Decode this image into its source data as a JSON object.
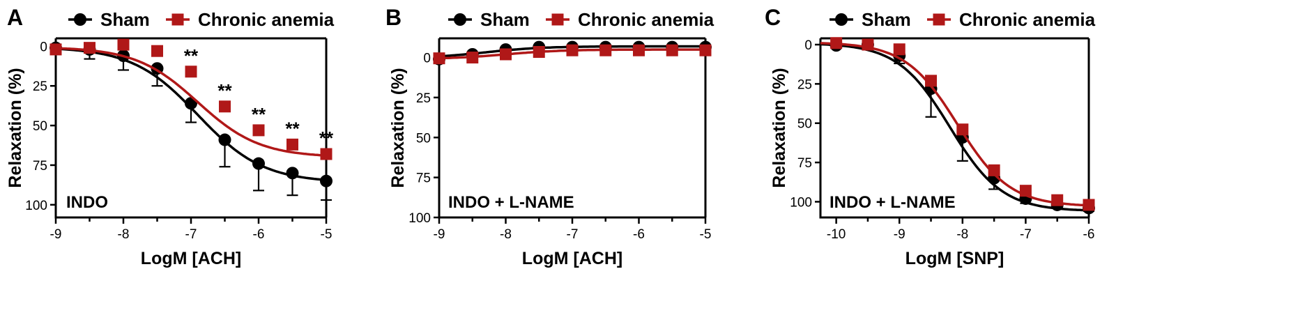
{
  "colors": {
    "sham": "#000000",
    "anemia": "#b01818"
  },
  "chart_data": [
    {
      "type": "line",
      "panel": "A",
      "condition": "INDO",
      "xlabel": "LogM [ACH]",
      "ylabel": "Relaxation (%)",
      "xlim": [
        -9,
        -5
      ],
      "ylim": [
        108,
        -5
      ],
      "y_inverted": true,
      "xticks": [
        -9,
        -8,
        -7,
        -6,
        -5
      ],
      "xtick_labels": [
        "-9",
        "-8",
        "-7",
        "-6",
        "-5"
      ],
      "yticks": [
        0,
        25,
        50,
        75,
        100
      ],
      "ytick_labels": [
        "0",
        "25",
        "50",
        "75",
        "100"
      ],
      "legend_position": "top",
      "series": [
        {
          "name": "Sham",
          "marker": "circle",
          "color": "#000000",
          "x": [
            -9,
            -8.5,
            -8,
            -7.5,
            -7,
            -6.5,
            -6,
            -5.5,
            -5
          ],
          "y": [
            1,
            2,
            6,
            14,
            36,
            59,
            74,
            80,
            85
          ],
          "error": [
            1.5,
            6,
            9,
            11,
            12,
            17,
            17,
            14,
            12
          ],
          "fit": {
            "top": 0.5,
            "bottom": 86,
            "logEC50": -6.9,
            "hill": 0.9
          }
        },
        {
          "name": "Chronic anemia",
          "marker": "square",
          "color": "#b01818",
          "x": [
            -9,
            -8.5,
            -8,
            -7.5,
            -7,
            -6.5,
            -6,
            -5.5,
            -5
          ],
          "y": [
            2,
            1,
            -1,
            3,
            16,
            38,
            53,
            62,
            68
          ],
          "error": [
            1.5,
            2,
            1.5,
            1.5,
            3,
            3,
            3,
            2.5,
            2
          ],
          "fit": {
            "top": 0.5,
            "bottom": 70,
            "logEC50": -6.9,
            "hill": 0.95
          }
        }
      ],
      "annotations": [
        {
          "text": "**",
          "x": -7,
          "y": 16
        },
        {
          "text": "**",
          "x": -6.5,
          "y": 38
        },
        {
          "text": "**",
          "x": -6,
          "y": 53
        },
        {
          "text": "**",
          "x": -5.5,
          "y": 62
        },
        {
          "text": "**",
          "x": -5,
          "y": 68
        }
      ]
    },
    {
      "type": "line",
      "panel": "B",
      "condition": "INDO + L-NAME",
      "xlabel": "LogM [ACH]",
      "ylabel": "Relaxation (%)",
      "xlim": [
        -9,
        -5
      ],
      "ylim": [
        100,
        -12
      ],
      "y_inverted": true,
      "xticks": [
        -9,
        -8,
        -7,
        -6,
        -5
      ],
      "xtick_labels": [
        "-9",
        "-8",
        "-7",
        "-6",
        "-5"
      ],
      "yticks": [
        0,
        25,
        50,
        75,
        100
      ],
      "ytick_labels": [
        "0",
        "25",
        "50",
        "75",
        "100"
      ],
      "legend_position": "top",
      "series": [
        {
          "name": "Sham",
          "marker": "circle",
          "color": "#000000",
          "x": [
            -9,
            -8.5,
            -8,
            -7.5,
            -7,
            -6.5,
            -6,
            -5.5,
            -5
          ],
          "y": [
            1,
            -2,
            -5,
            -6.5,
            -6.5,
            -6.5,
            -6.5,
            -6.5,
            -6.5
          ],
          "error": [
            1.5,
            1.5,
            1.5,
            2,
            4,
            2,
            2,
            3,
            3
          ],
          "fit": {
            "top": 0.5,
            "bottom": -7,
            "logEC50": -8.3,
            "hill": 1
          }
        },
        {
          "name": "Chronic anemia",
          "marker": "square",
          "color": "#b01818",
          "x": [
            -9,
            -8.5,
            -8,
            -7.5,
            -7,
            -6.5,
            -6,
            -5.5,
            -5
          ],
          "y": [
            0.5,
            0,
            -2,
            -3.5,
            -4.5,
            -4.5,
            -4.5,
            -4.5,
            -4.5
          ],
          "error": [
            1,
            1,
            1,
            1.5,
            2,
            1.5,
            1.5,
            1.5,
            1.5
          ],
          "fit": {
            "top": 1,
            "bottom": -5,
            "logEC50": -8,
            "hill": 1
          }
        }
      ],
      "annotations": []
    },
    {
      "type": "line",
      "panel": "C",
      "condition": "INDO + L-NAME",
      "xlabel": "LogM [SNP]",
      "ylabel": "Relaxation (%)",
      "xlim": [
        -10.25,
        -6
      ],
      "ylim": [
        110,
        -4
      ],
      "y_inverted": true,
      "xticks": [
        -10,
        -9,
        -8,
        -7,
        -6
      ],
      "xtick_labels": [
        "-10",
        "-9",
        "-8",
        "-7",
        "-6"
      ],
      "yticks": [
        0,
        25,
        50,
        75,
        100
      ],
      "ytick_labels": [
        "0",
        "25",
        "50",
        "75",
        "100"
      ],
      "legend_position": "top",
      "series": [
        {
          "name": "Sham",
          "marker": "circle",
          "color": "#000000",
          "x": [
            -10,
            -9.5,
            -9,
            -8.5,
            -8,
            -7.5,
            -7,
            -6.5,
            -6
          ],
          "y": [
            0.5,
            0,
            7,
            28,
            59,
            85,
            98,
            102,
            104
          ],
          "error": [
            1.5,
            2,
            5,
            18,
            15,
            7,
            3,
            2,
            2
          ],
          "fit": {
            "top": -1,
            "bottom": 106,
            "logEC50": -8.2,
            "hill": 1.05
          }
        },
        {
          "name": "Chronic anemia",
          "marker": "square",
          "color": "#b01818",
          "x": [
            -10,
            -9.5,
            -9,
            -8.5,
            -8,
            -7.5,
            -7,
            -6.5,
            -6
          ],
          "y": [
            -1,
            0,
            3,
            23,
            54,
            80,
            93,
            99,
            102
          ],
          "error": [
            1,
            1,
            2,
            2,
            2,
            2,
            2,
            1.5,
            1.5
          ],
          "fit": {
            "top": -1.5,
            "bottom": 103,
            "logEC50": -8.08,
            "hill": 1.05
          }
        }
      ],
      "annotations": []
    }
  ]
}
